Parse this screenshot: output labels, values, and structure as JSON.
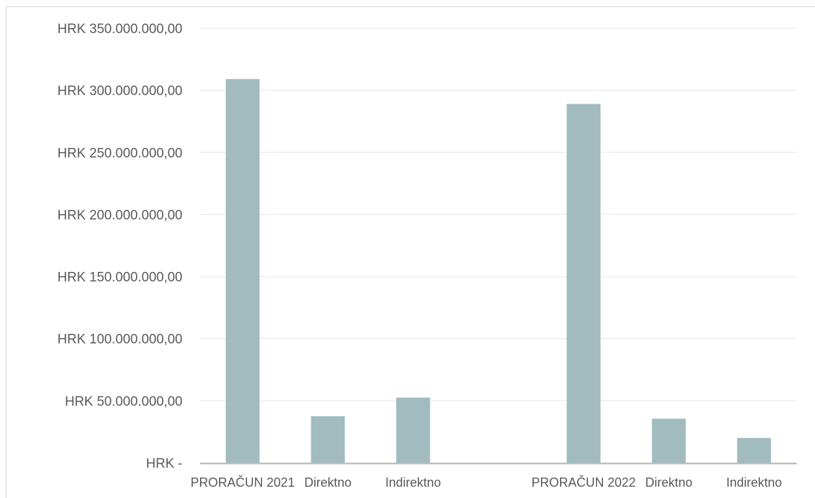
{
  "chart_data": {
    "type": "bar",
    "categories": [
      "PRORAČUN 2021",
      "Direktno",
      "Indirektno",
      "",
      "PRORAČUN 2022",
      "Direktno",
      "Indirektno"
    ],
    "values": [
      309000000,
      37500000,
      52500000,
      null,
      289000000,
      35500000,
      20000000
    ],
    "ylim": [
      0,
      350000000
    ],
    "y_ticks": [
      0,
      50000000,
      100000000,
      150000000,
      200000000,
      250000000,
      300000000,
      350000000
    ],
    "y_tick_labels": [
      "HRK -",
      "HRK 50.000.000,00",
      "HRK 100.000.000,00",
      "HRK 150.000.000,00",
      "HRK 200.000.000,00",
      "HRK 250.000.000,00",
      "HRK 300.000.000,00",
      "HRK 350.000.000,00"
    ],
    "grid": true,
    "bar_color": "#a1bbbf",
    "grid_color": "#eeeeee",
    "axis_color": "#bfbfbf"
  }
}
